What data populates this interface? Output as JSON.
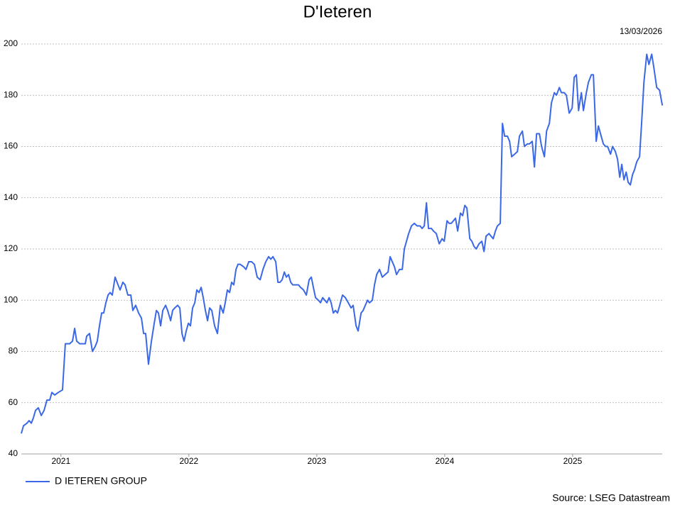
{
  "chart_data": {
    "type": "line",
    "title": "D'Ieteren",
    "date": "13/03/2026",
    "source": "Source: LSEG Datastream",
    "grid": true,
    "xlim": [
      2021.19,
      2026.2
    ],
    "ylim": [
      40,
      200
    ],
    "yticks": [
      40,
      60,
      80,
      100,
      120,
      140,
      160,
      180,
      200
    ],
    "xticks": [
      {
        "value": 2021.5,
        "label": "2021"
      },
      {
        "value": 2022.5,
        "label": "2022"
      },
      {
        "value": 2023.5,
        "label": "2023"
      },
      {
        "value": 2024.5,
        "label": "2024"
      },
      {
        "value": 2025.5,
        "label": "2025"
      }
    ],
    "x": [
      2021.19,
      2021.207,
      2021.234,
      2021.251,
      2021.268,
      2021.284,
      2021.301,
      2021.323,
      2021.346,
      2021.368,
      2021.39,
      2021.412,
      2021.429,
      2021.451,
      2021.479,
      2021.512,
      2021.534,
      2021.568,
      2021.59,
      2021.607,
      2021.623,
      2021.646,
      2021.668,
      2021.69,
      2021.701,
      2021.723,
      2021.746,
      2021.768,
      2021.784,
      2021.801,
      2021.818,
      2021.834,
      2021.851,
      2021.868,
      2021.884,
      2021.901,
      2021.923,
      2021.946,
      2021.962,
      2021.984,
      2022.001,
      2022.023,
      2022.046,
      2022.062,
      2022.084,
      2022.107,
      2022.129,
      2022.146,
      2022.162,
      2022.184,
      2022.207,
      2022.229,
      2022.246,
      2022.262,
      2022.279,
      2022.296,
      2022.318,
      2022.334,
      2022.357,
      2022.373,
      2022.39,
      2022.412,
      2022.429,
      2022.446,
      2022.462,
      2022.479,
      2022.496,
      2022.512,
      2022.529,
      2022.546,
      2022.562,
      2022.579,
      2022.596,
      2022.612,
      2022.629,
      2022.646,
      2022.662,
      2022.679,
      2022.701,
      2022.723,
      2022.746,
      2022.768,
      2022.784,
      2022.801,
      2022.818,
      2022.834,
      2022.851,
      2022.868,
      2022.884,
      2022.901,
      2022.929,
      2022.946,
      2022.968,
      2022.99,
      2023.012,
      2023.034,
      2023.057,
      2023.079,
      2023.101,
      2023.123,
      2023.14,
      2023.157,
      2023.179,
      2023.196,
      2023.212,
      2023.229,
      2023.246,
      2023.262,
      2023.279,
      2023.296,
      2023.312,
      2023.334,
      2023.357,
      2023.373,
      2023.396,
      2023.418,
      2023.44,
      2023.457,
      2023.473,
      2023.49,
      2023.512,
      2023.529,
      2023.546,
      2023.562,
      2023.579,
      2023.596,
      2023.612,
      2023.629,
      2023.646,
      2023.662,
      2023.679,
      2023.701,
      2023.723,
      2023.746,
      2023.768,
      2023.784,
      2023.807,
      2023.823,
      2023.846,
      2023.862,
      2023.879,
      2023.896,
      2023.912,
      2023.934,
      2023.951,
      2023.968,
      2023.99,
      2024.012,
      2024.034,
      2024.057,
      2024.073,
      2024.09,
      2024.107,
      2024.123,
      2024.146,
      2024.168,
      2024.184,
      2024.201,
      2024.218,
      2024.24,
      2024.262,
      2024.284,
      2024.307,
      2024.323,
      2024.34,
      2024.357,
      2024.373,
      2024.396,
      2024.412,
      2024.434,
      2024.457,
      2024.479,
      2024.496,
      2024.518,
      2024.534,
      2024.551,
      2024.568,
      2024.584,
      2024.601,
      2024.623,
      2024.64,
      2024.657,
      2024.673,
      2024.696,
      2024.712,
      2024.729,
      2024.746,
      2024.768,
      2024.79,
      2024.807,
      2024.823,
      2024.846,
      2024.862,
      2024.879,
      2024.896,
      2024.912,
      2024.934,
      2024.951,
      2024.968,
      2024.99,
      2025.007,
      2025.023,
      2025.046,
      2025.068,
      2025.084,
      2025.107,
      2025.123,
      2025.146,
      2025.162,
      2025.184,
      2025.201,
      2025.218,
      2025.24,
      2025.257,
      2025.279,
      2025.296,
      2025.318,
      2025.334,
      2025.357,
      2025.373,
      2025.396,
      2025.412,
      2025.434,
      2025.451,
      2025.473,
      2025.496,
      2025.512,
      2025.529,
      2025.546,
      2025.568,
      2025.584,
      2025.607,
      2025.623,
      2025.646,
      2025.662,
      2025.684,
      2025.701,
      2025.723,
      2025.74,
      2025.757,
      2025.773,
      2025.796,
      2025.812,
      2025.834,
      2025.851,
      2025.868,
      2025.884,
      2025.901,
      2025.918,
      2025.934,
      2025.951,
      2025.968,
      2025.984,
      2026.001,
      2026.023,
      2026.04,
      2026.057,
      2026.079,
      2026.096,
      2026.118,
      2026.134,
      2026.157,
      2026.179,
      2026.201
    ],
    "series": [
      {
        "name": "D IETEREN GROUP",
        "color": "#3a68e6",
        "values": [
          48,
          51,
          52,
          53,
          52,
          54,
          57,
          58,
          55,
          57,
          61,
          61,
          64,
          63,
          64,
          65,
          83,
          83,
          84,
          89,
          84,
          83,
          83,
          83,
          86,
          87,
          80,
          82,
          84,
          90,
          95,
          95,
          99,
          102,
          103,
          102,
          109,
          106,
          104,
          107,
          106,
          102,
          102,
          96,
          98,
          95,
          93,
          87,
          87,
          75,
          84,
          91,
          96,
          95,
          90,
          96,
          98,
          96,
          92,
          96,
          97,
          98,
          97,
          87,
          84,
          88,
          91,
          90,
          97,
          99,
          104,
          103,
          105,
          101,
          96,
          92,
          97,
          96,
          90,
          87,
          98,
          95,
          99,
          104,
          103,
          107,
          106,
          112,
          114,
          114,
          113,
          112,
          115,
          115,
          114,
          109,
          108,
          112,
          115,
          117,
          116,
          117,
          115,
          107,
          107,
          108,
          111,
          109,
          110,
          107,
          106,
          106,
          106,
          105,
          104,
          102,
          108,
          109,
          105,
          101,
          100,
          99,
          101,
          100,
          99,
          101,
          99,
          95,
          96,
          95,
          98,
          102,
          101,
          99,
          97,
          98,
          90,
          88,
          95,
          96,
          98,
          100,
          99,
          100,
          106,
          110,
          112,
          109,
          110,
          111,
          117,
          115,
          113,
          110,
          112,
          112,
          120,
          123,
          126,
          129,
          130,
          129,
          129,
          128,
          129,
          138,
          128,
          128,
          127,
          126,
          122,
          124,
          123,
          131,
          130,
          130,
          131,
          132,
          127,
          134,
          133,
          137,
          136,
          124,
          123,
          121,
          120,
          122,
          123,
          119,
          125,
          126,
          125,
          124,
          127,
          129,
          130,
          169,
          164,
          164,
          162,
          156,
          157,
          158,
          164,
          166,
          160,
          161,
          161,
          162,
          152,
          165,
          165,
          160,
          156,
          166,
          169,
          177,
          181,
          180,
          183,
          181,
          181,
          180,
          173,
          175,
          187,
          188,
          174,
          181,
          174,
          181,
          185,
          188,
          188,
          162,
          168,
          164,
          161,
          160,
          160,
          157,
          160,
          158,
          155,
          148,
          153,
          147,
          150,
          146,
          145,
          149,
          151,
          154,
          156,
          170,
          185,
          196,
          192,
          196,
          191,
          183,
          182,
          176
        ]
      }
    ]
  }
}
